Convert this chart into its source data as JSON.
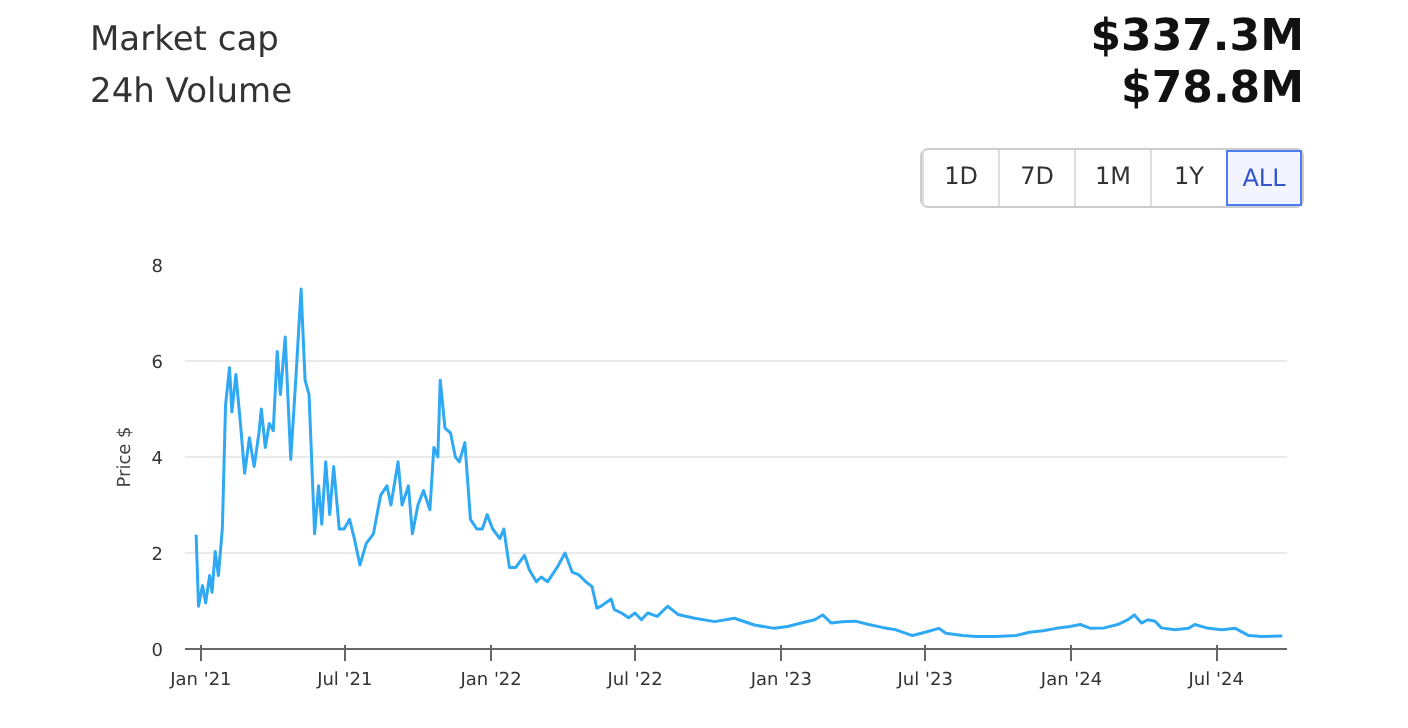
{
  "chart_data": {
    "type": "line",
    "ylabel": "Price $",
    "annotations": [
      "Market cap",
      "$337.3M",
      "24h Volume",
      "$78.8M",
      "1D",
      "7D",
      "1M",
      "1Y",
      "ALL"
    ],
    "x": [
      "2020-12-26",
      "2020-12-29",
      "2021-01-03",
      "2021-01-07",
      "2021-01-12",
      "2021-01-15",
      "2021-01-19",
      "2021-01-23",
      "2021-01-28",
      "2021-02-01",
      "2021-02-06",
      "2021-02-09",
      "2021-02-14",
      "2021-02-20",
      "2021-02-25",
      "2021-03-03",
      "2021-03-09",
      "2021-03-15",
      "2021-03-18",
      "2021-03-23",
      "2021-03-28",
      "2021-04-02",
      "2021-04-07",
      "2021-04-11",
      "2021-04-17",
      "2021-04-24",
      "2021-05-01",
      "2021-05-07",
      "2021-05-12",
      "2021-05-17",
      "2021-05-24",
      "2021-05-29",
      "2021-06-02",
      "2021-06-07",
      "2021-06-12",
      "2021-06-17",
      "2021-06-24",
      "2021-06-30",
      "2021-07-07",
      "2021-07-13",
      "2021-07-20",
      "2021-07-28",
      "2021-08-06",
      "2021-08-15",
      "2021-08-23",
      "2021-08-28",
      "2021-09-06",
      "2021-09-11",
      "2021-09-19",
      "2021-09-24",
      "2021-10-01",
      "2021-10-08",
      "2021-10-16",
      "2021-10-21",
      "2021-10-26",
      "2021-10-29",
      "2021-11-04",
      "2021-11-11",
      "2021-11-17",
      "2021-11-22",
      "2021-11-29",
      "2021-12-06",
      "2021-12-14",
      "2021-12-21",
      "2021-12-27",
      "2022-01-03",
      "2022-01-12",
      "2022-01-17",
      "2022-01-24",
      "2022-02-01",
      "2022-02-12",
      "2022-02-18",
      "2022-02-27",
      "2022-03-05",
      "2022-03-13",
      "2022-03-25",
      "2022-04-04",
      "2022-04-13",
      "2022-04-21",
      "2022-04-30",
      "2022-05-08",
      "2022-05-14",
      "2022-05-20",
      "2022-06-01",
      "2022-06-05",
      "2022-06-14",
      "2022-06-23",
      "2022-07-01",
      "2022-07-09",
      "2022-07-17",
      "2022-07-29",
      "2022-08-11",
      "2022-08-24",
      "2022-09-14",
      "2022-10-09",
      "2022-11-03",
      "2022-11-28",
      "2022-12-23",
      "2023-01-09",
      "2023-01-26",
      "2023-02-12",
      "2023-02-22",
      "2023-03-05",
      "2023-03-18",
      "2023-04-04",
      "2023-04-21",
      "2023-05-08",
      "2023-05-25",
      "2023-06-15",
      "2023-07-01",
      "2023-07-18",
      "2023-07-27",
      "2023-08-17",
      "2023-09-03",
      "2023-09-28",
      "2023-10-23",
      "2023-11-09",
      "2023-11-26",
      "2023-12-13",
      "2023-12-30",
      "2024-01-12",
      "2024-01-25",
      "2024-02-11",
      "2024-02-28",
      "2024-03-12",
      "2024-03-20",
      "2024-03-29",
      "2024-04-06",
      "2024-04-15",
      "2024-04-23",
      "2024-05-10",
      "2024-05-27",
      "2024-06-04",
      "2024-06-21",
      "2024-07-08",
      "2024-07-25",
      "2024-08-11",
      "2024-08-28",
      "2024-09-22"
    ],
    "series": [
      {
        "color": "#30a9f5",
        "values": [
          2.38,
          0.89,
          1.32,
          0.96,
          1.53,
          1.18,
          2.03,
          1.53,
          2.52,
          5.08,
          5.86,
          4.94,
          5.72,
          4.65,
          3.66,
          4.4,
          3.8,
          4.5,
          5.0,
          4.2,
          4.7,
          4.55,
          6.2,
          5.3,
          6.5,
          3.95,
          5.8,
          7.5,
          5.6,
          5.3,
          2.4,
          3.4,
          2.6,
          3.9,
          2.8,
          3.8,
          2.5,
          2.5,
          2.7,
          2.3,
          1.75,
          2.2,
          2.4,
          3.2,
          3.4,
          3.0,
          3.9,
          3.0,
          3.4,
          2.4,
          3.0,
          3.3,
          2.9,
          4.2,
          4.0,
          5.6,
          4.6,
          4.5,
          4.0,
          3.9,
          4.3,
          2.7,
          2.5,
          2.5,
          2.8,
          2.5,
          2.3,
          2.5,
          1.7,
          1.7,
          1.95,
          1.65,
          1.4,
          1.5,
          1.4,
          1.7,
          2.0,
          1.6,
          1.55,
          1.4,
          1.3,
          0.85,
          0.9,
          1.04,
          0.82,
          0.75,
          0.65,
          0.75,
          0.61,
          0.75,
          0.68,
          0.89,
          0.72,
          0.64,
          0.57,
          0.64,
          0.5,
          0.43,
          0.47,
          0.54,
          0.61,
          0.71,
          0.54,
          0.57,
          0.58,
          0.51,
          0.45,
          0.4,
          0.28,
          0.35,
          0.43,
          0.33,
          0.28,
          0.26,
          0.26,
          0.28,
          0.35,
          0.38,
          0.43,
          0.47,
          0.51,
          0.43,
          0.44,
          0.51,
          0.61,
          0.71,
          0.54,
          0.61,
          0.58,
          0.44,
          0.4,
          0.43,
          0.51,
          0.43,
          0.4,
          0.43,
          0.28,
          0.26,
          0.27
        ]
      }
    ],
    "xlim": [
      "2020-12-12",
      "2024-09-28"
    ],
    "xticks": [
      {
        "value": "2021-01-01",
        "label": "Jan '21"
      },
      {
        "value": "2021-07-01",
        "label": "Jul '21"
      },
      {
        "value": "2022-01-01",
        "label": "Jan '22"
      },
      {
        "value": "2022-07-01",
        "label": "Jul '22"
      },
      {
        "value": "2023-01-01",
        "label": "Jan '23"
      },
      {
        "value": "2023-07-01",
        "label": "Jul '23"
      },
      {
        "value": "2024-01-01",
        "label": "Jan '24"
      },
      {
        "value": "2024-07-01",
        "label": "Jul '24"
      }
    ],
    "ylim": [
      0,
      8
    ],
    "yticks": [
      0,
      2,
      4,
      6,
      8
    ],
    "grid": "y",
    "marker": "none",
    "line_style": "solid"
  }
}
